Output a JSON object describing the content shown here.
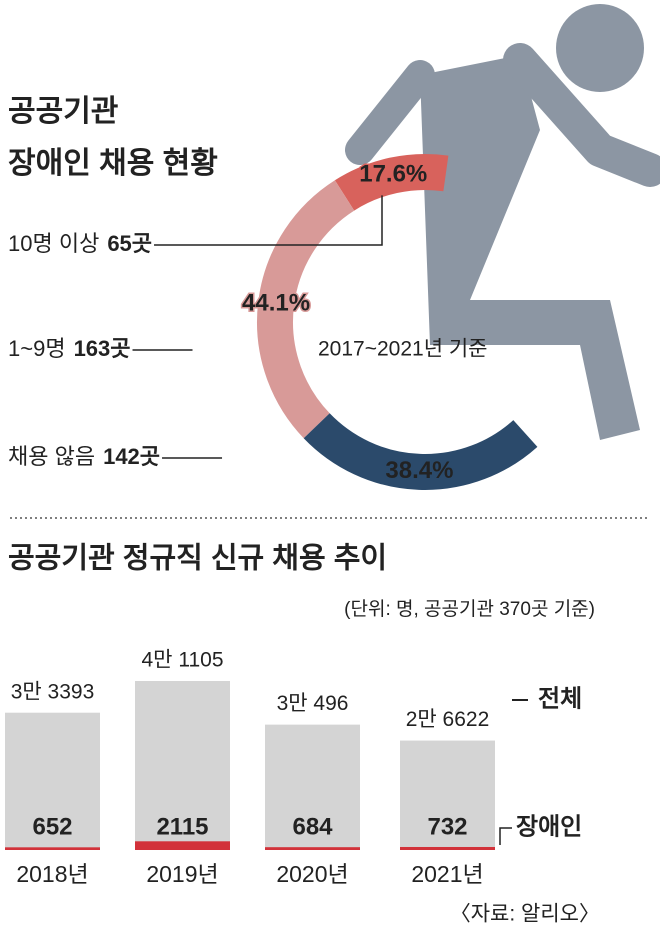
{
  "chart_data": [
    {
      "type": "pie",
      "title": [
        "공공기관",
        "장애인 채용 현황"
      ],
      "categories": [
        "10명 이상",
        "1~9명",
        "채용 않음"
      ],
      "counts": [
        65,
        163,
        142
      ],
      "count_labels": [
        "65곳",
        "163곳",
        "142곳"
      ],
      "values": [
        17.6,
        44.1,
        38.4
      ],
      "value_labels": [
        "17.6%",
        "44.1%",
        "38.4%"
      ],
      "colors": [
        "#d8625c",
        "#d89a98",
        "#2b4a6b"
      ],
      "annotation": "2017~2021년 기준"
    },
    {
      "type": "bar",
      "title": "공공기관 정규직 신규 채용 추이",
      "subtitle": "(단위: 명, 공공기관 370곳 기준)",
      "categories": [
        "2018년",
        "2019년",
        "2020년",
        "2021년"
      ],
      "ylim": [
        0,
        45000
      ],
      "series": [
        {
          "name": "전체",
          "color": "#d4d4d4",
          "values": [
            33393,
            41105,
            30496,
            26622
          ],
          "value_labels": [
            "3만 3393",
            "4만 1105",
            "3만 496",
            "2만 6622"
          ]
        },
        {
          "name": "장애인",
          "color": "#d2323a",
          "values": [
            652,
            2115,
            684,
            732
          ]
        }
      ],
      "source": "〈자료: 알리오〉"
    }
  ]
}
